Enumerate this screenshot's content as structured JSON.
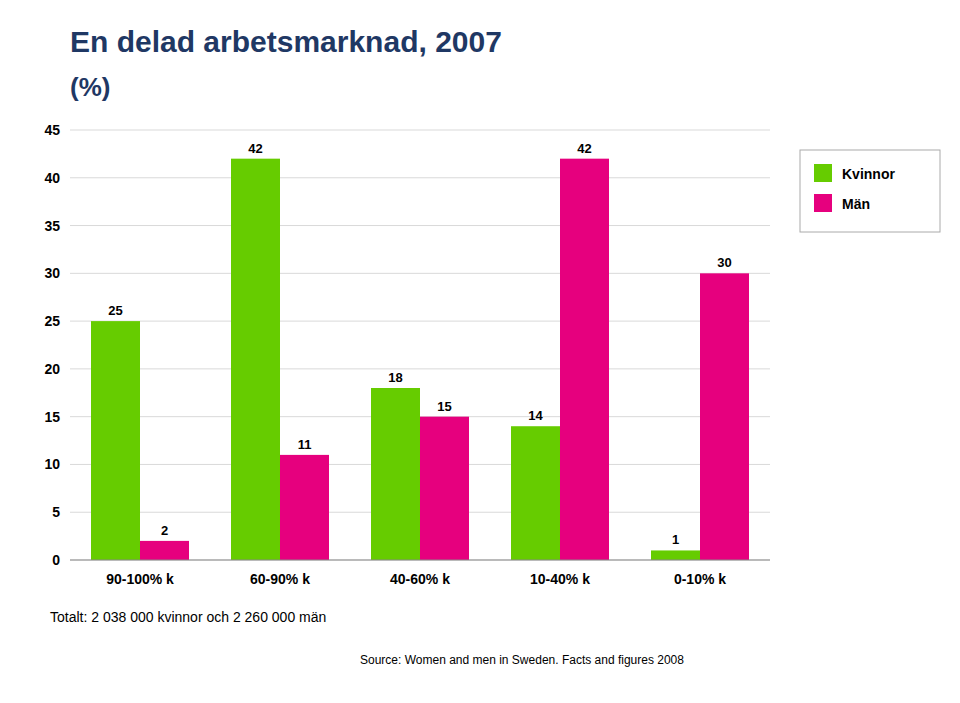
{
  "chart_data": {
    "type": "bar",
    "title": "En delad arbetsmarknad, 2007",
    "subtitle": "(%)",
    "categories": [
      "90-100% k",
      "60-90% k",
      "40-60% k",
      "10-40% k",
      "0-10% k"
    ],
    "series": [
      {
        "name": "Kvinnor",
        "color": "#66cc00",
        "values": [
          25,
          42,
          18,
          14,
          1
        ]
      },
      {
        "name": "Män",
        "color": "#e6007e",
        "values": [
          2,
          11,
          15,
          42,
          30
        ]
      }
    ],
    "ylim": [
      0,
      45
    ],
    "yticks": [
      0,
      5,
      10,
      15,
      20,
      25,
      30,
      35,
      40,
      45
    ],
    "grid": true,
    "legend": "right",
    "data_labels": true,
    "annotations": [
      "Totalt: 2 038 000 kvinnor och 2 260 000 män",
      "Source: Women and men in Sweden. Facts and figures 2008"
    ]
  }
}
